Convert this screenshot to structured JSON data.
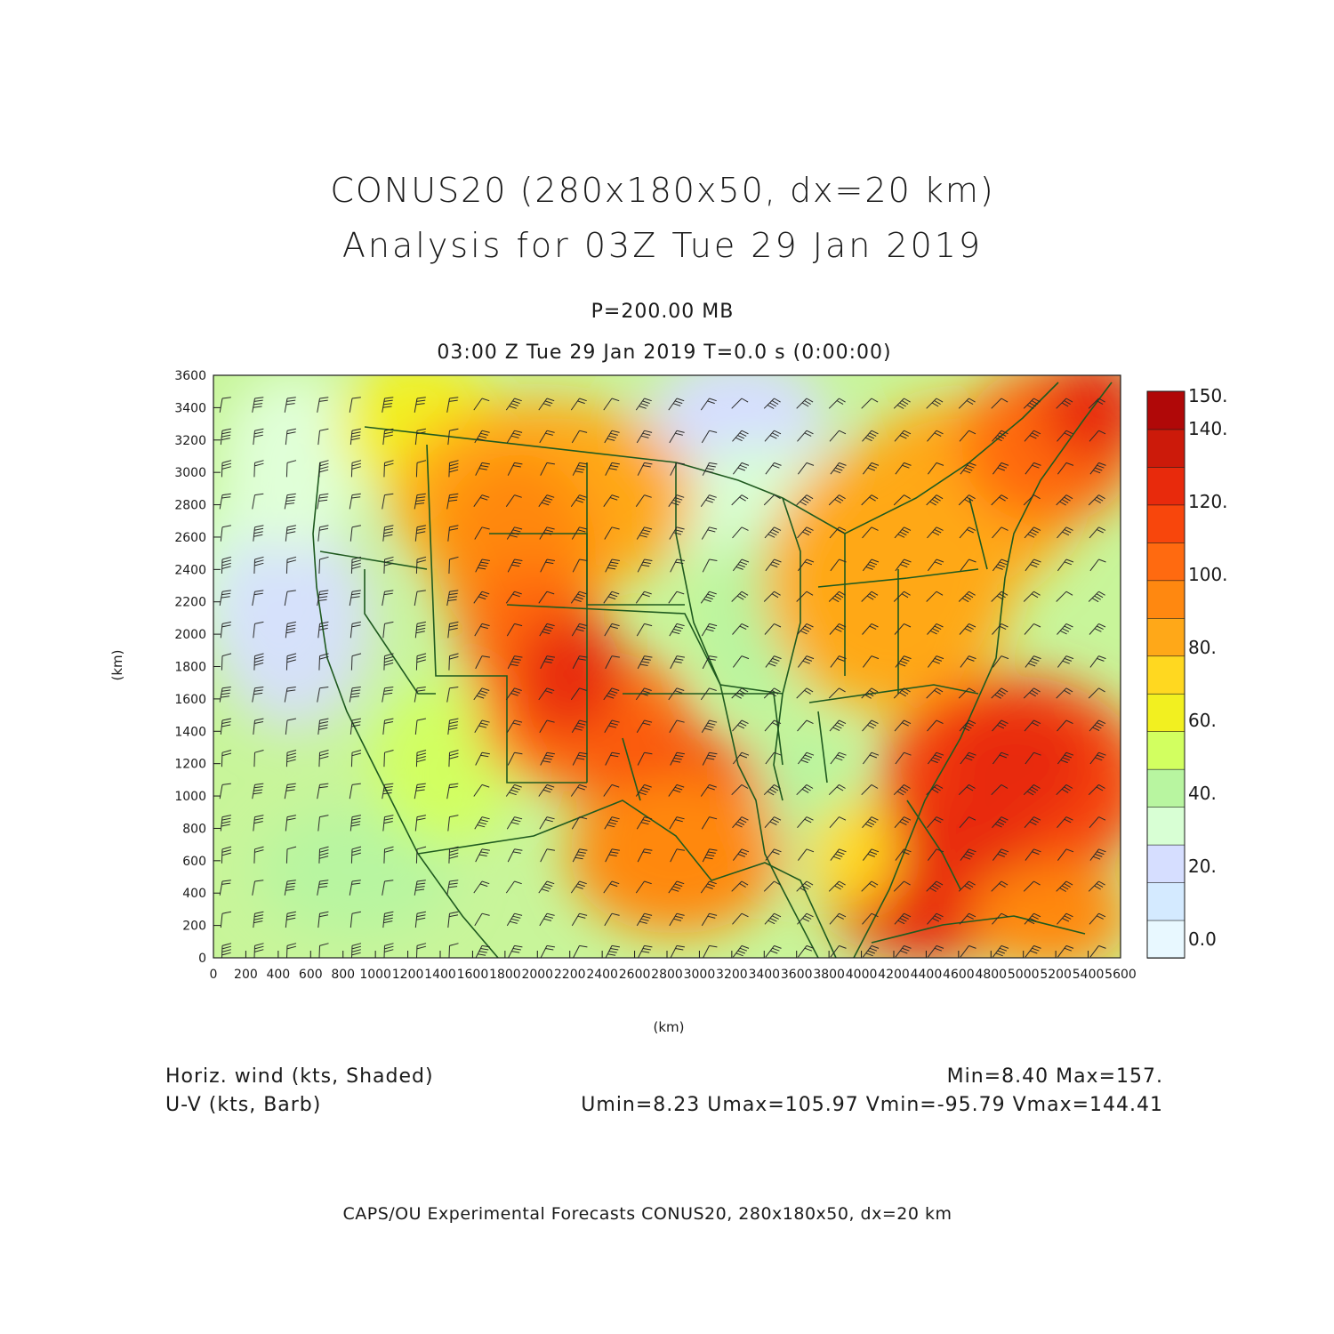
{
  "header": {
    "title_line1": "CONUS20 (280x180x50, dx=20 km)",
    "title_line2": "Analysis for 03Z Tue 29 Jan 2019",
    "level": "P=200.00 MB",
    "valid_time": "03:00 Z Tue 29 Jan 2019    T=0.0 s (0:00:00)"
  },
  "axes": {
    "x_label": "(km)",
    "y_label": "(km)",
    "x_ticks": [
      "0",
      "200",
      "400",
      "600",
      "800",
      "1000",
      "1200",
      "1400",
      "1600",
      "1800",
      "2000",
      "2200",
      "2400",
      "2600",
      "2800",
      "3000",
      "3200",
      "3400",
      "3600",
      "3800",
      "4000",
      "4200",
      "4400",
      "4600",
      "4800",
      "5000",
      "5200",
      "5400",
      "5600"
    ],
    "y_ticks": [
      "0",
      "200",
      "400",
      "600",
      "800",
      "1000",
      "1200",
      "1400",
      "1600",
      "1800",
      "2000",
      "2200",
      "2400",
      "2600",
      "2800",
      "3000",
      "3200",
      "3400",
      "3600"
    ],
    "x_range": [
      0,
      5600
    ],
    "y_range": [
      0,
      3600
    ]
  },
  "colorbar": {
    "labels": [
      "0.0",
      "20.",
      "40.",
      "60.",
      "80.",
      "100.",
      "120.",
      "140.",
      "150."
    ],
    "colors": [
      "#e8f8ff",
      "#d4eaff",
      "#d6deff",
      "#d8ffd4",
      "#b8f5a0",
      "#d2ff60",
      "#f2f020",
      "#ffd820",
      "#ffa818",
      "#ff8810",
      "#ff6a10",
      "#f8460c",
      "#e82a0c",
      "#cc1a0a",
      "#b00808"
    ]
  },
  "footer": {
    "field_label": "Horiz. wind (kts, Shaded)",
    "barb_label": "U-V (kts, Barb)",
    "minmax": "Min=8.40 Max=157.",
    "uv_stats": "Umin=8.23 Umax=105.97 Vmin=-95.79 Vmax=144.41",
    "credit": "CAPS/OU Experimental Forecasts  CONUS20, 280x180x50, dx=20 km"
  },
  "colors": {
    "map_outline": "#1f5a1f",
    "axis": "#1a1a1a"
  }
}
